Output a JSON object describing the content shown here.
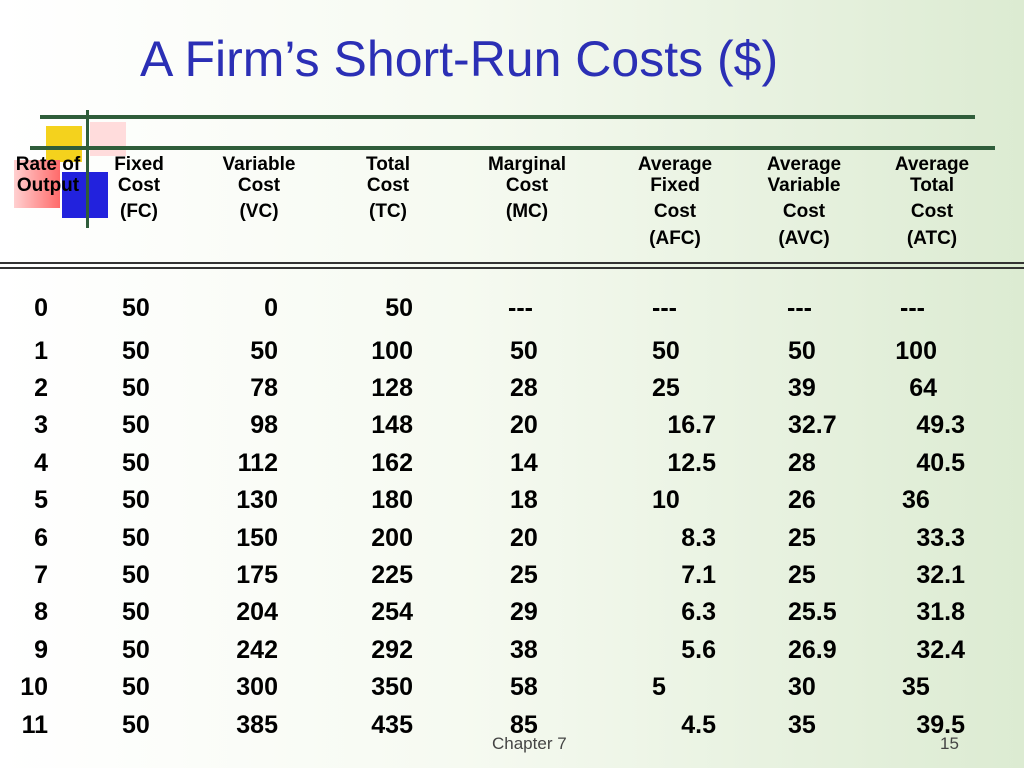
{
  "title": "A Firm’s Short-Run Costs ($)",
  "headers": [
    {
      "lines": [
        "Rate of",
        "Output"
      ]
    },
    {
      "lines": [
        "Fixed",
        "Cost",
        "(FC)"
      ]
    },
    {
      "lines": [
        "Variable",
        "Cost",
        "(VC)"
      ]
    },
    {
      "lines": [
        "Total",
        "Cost",
        "(TC)"
      ]
    },
    {
      "lines": [
        "Marginal",
        "Cost",
        "(MC)"
      ]
    },
    {
      "lines": [
        "Average",
        "Fixed",
        "Cost",
        "(AFC)"
      ]
    },
    {
      "lines": [
        "Average",
        "Variable",
        "Cost",
        "(AVC)"
      ]
    },
    {
      "lines": [
        "Average",
        "Total",
        "Cost",
        "(ATC)"
      ]
    }
  ],
  "rows": [
    [
      "0",
      "50",
      "0",
      "50",
      "---",
      "---",
      "---",
      "---"
    ],
    [
      "1",
      "50",
      "50",
      "100",
      "50",
      "50",
      "50",
      "100"
    ],
    [
      "2",
      "50",
      "78",
      "128",
      "28",
      "25",
      "39",
      "64"
    ],
    [
      "3",
      "50",
      "98",
      "148",
      "20",
      "16.7",
      "32.7",
      "49.3"
    ],
    [
      "4",
      "50",
      "112",
      "162",
      "14",
      "12.5",
      "28",
      "40.5"
    ],
    [
      "5",
      "50",
      "130",
      "180",
      "18",
      "10",
      "26",
      "36"
    ],
    [
      "6",
      "50",
      "150",
      "200",
      "20",
      "8.3",
      "25",
      "33.3"
    ],
    [
      "7",
      "50",
      "175",
      "225",
      "25",
      "7.1",
      "25",
      "32.1"
    ],
    [
      "8",
      "50",
      "204",
      "254",
      "29",
      "6.3",
      "25.5",
      "31.8"
    ],
    [
      "9",
      "50",
      "242",
      "292",
      "38",
      "5.6",
      "26.9",
      "32.4"
    ],
    [
      "10",
      "50",
      "300",
      "350",
      "58",
      "5",
      "30",
      "35"
    ],
    [
      "11",
      "50",
      "385",
      "435",
      "85",
      "4.5",
      "35",
      "39.5"
    ]
  ],
  "footer": {
    "chapter": "Chapter 7",
    "page": "15"
  },
  "colors": {
    "title": "#2b2fb5",
    "rule": "#2f5d3a"
  }
}
